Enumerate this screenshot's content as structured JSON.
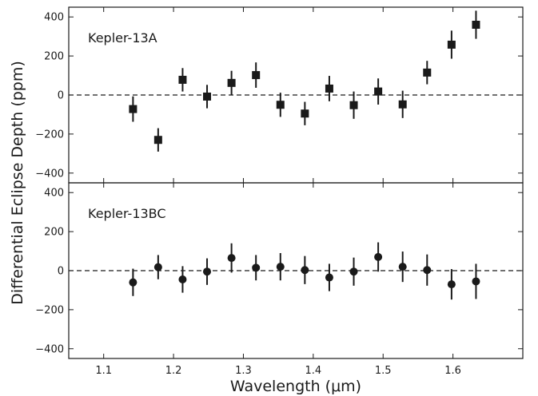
{
  "chart_data": {
    "type": "scatter",
    "xlabel": "Wavelength (μm)",
    "ylabel": "Differential Eclipse Depth (ppm)",
    "xlim": [
      1.05,
      1.7
    ],
    "ylim": [
      -450,
      450
    ],
    "x_ticks": [
      1.1,
      1.2,
      1.3,
      1.4,
      1.5,
      1.6
    ],
    "y_ticks": [
      -400,
      -200,
      0,
      200,
      400
    ],
    "reference_line": {
      "y": 0,
      "style": "dashed"
    },
    "grid": false,
    "x": [
      1.142,
      1.178,
      1.213,
      1.248,
      1.283,
      1.318,
      1.353,
      1.388,
      1.423,
      1.458,
      1.493,
      1.528,
      1.563,
      1.598,
      1.633
    ],
    "panels": [
      {
        "label": "Kepler-13A",
        "marker": "square",
        "values": [
          -72,
          -230,
          78,
          -8,
          62,
          102,
          -50,
          -95,
          33,
          -52,
          18,
          -48,
          115,
          258,
          360
        ],
        "errors": [
          65,
          60,
          60,
          60,
          62,
          65,
          62,
          60,
          65,
          70,
          67,
          70,
          60,
          72,
          72
        ]
      },
      {
        "label": "Kepler-13BC",
        "marker": "circle",
        "values": [
          -60,
          18,
          -45,
          -5,
          65,
          15,
          20,
          3,
          -35,
          -5,
          70,
          20,
          3,
          -70,
          -55
        ],
        "errors": [
          70,
          62,
          68,
          68,
          75,
          65,
          70,
          72,
          70,
          72,
          75,
          78,
          80,
          78,
          90
        ]
      }
    ]
  }
}
